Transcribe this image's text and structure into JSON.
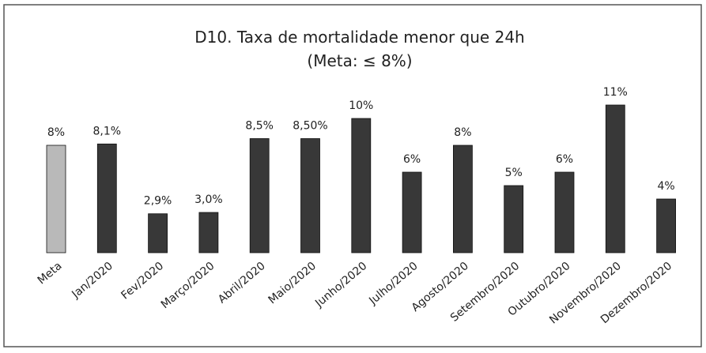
{
  "chart_data": {
    "type": "bar",
    "title": "D10. Taxa de mortalidade menor que 24h",
    "subtitle": "(Meta: ≤ 8%)",
    "categories": [
      "Meta",
      "Jan/2020",
      "Fev/2020",
      "Março/2020",
      "Abril/2020",
      "Maio/2020",
      "Junho/2020",
      "Julho/2020",
      "Agosto/2020",
      "Setembro/2020",
      "Outubro/2020",
      "Novembro/2020",
      "Dezembro/2020"
    ],
    "values": [
      8,
      8.1,
      2.9,
      3.0,
      8.5,
      8.5,
      10,
      6,
      8,
      5,
      6,
      11,
      4
    ],
    "value_labels": [
      "8%",
      "8,1%",
      "2,9%",
      "3,0%",
      "8,5%",
      "8,50%",
      "10%",
      "6%",
      "8%",
      "5%",
      "6%",
      "11%",
      "4%"
    ],
    "colors": [
      "#b9b9b9",
      "#383838",
      "#383838",
      "#383838",
      "#383838",
      "#383838",
      "#383838",
      "#383838",
      "#383838",
      "#383838",
      "#383838",
      "#383838",
      "#383838"
    ]
  }
}
